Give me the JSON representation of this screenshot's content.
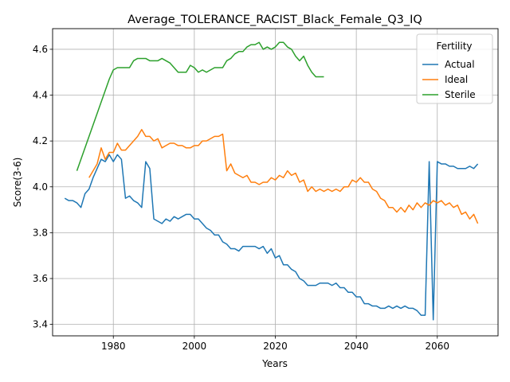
{
  "chart_data": {
    "type": "line",
    "title": "Average_TOLERANCE_RACIST_Black_Female_Q3_IQ",
    "xlabel": "Years",
    "ylabel": "Score(3-6)",
    "xlim": [
      1965,
      2075
    ],
    "ylim": [
      3.35,
      4.69
    ],
    "xticks": [
      1980,
      2000,
      2020,
      2040,
      2060
    ],
    "yticks": [
      3.4,
      3.6,
      3.8,
      4.0,
      4.2,
      4.4,
      4.6
    ],
    "ytick_labels": [
      "3.4",
      "3.6",
      "3.8",
      "4.0",
      "4.2",
      "4.4",
      "4.6"
    ],
    "grid": true,
    "legend": {
      "title": "Fertility",
      "placement": "top-right"
    },
    "series": [
      {
        "name": "Actual",
        "color": "#1f77b4",
        "x": [
          1968,
          1969,
          1970,
          1971,
          1972,
          1973,
          1974,
          1975,
          1976,
          1977,
          1978,
          1979,
          1980,
          1981,
          1982,
          1983,
          1984,
          1985,
          1986,
          1987,
          1988,
          1989,
          1990,
          1991,
          1992,
          1993,
          1994,
          1995,
          1996,
          1997,
          1998,
          1999,
          2000,
          2001,
          2002,
          2003,
          2004,
          2005,
          2006,
          2007,
          2008,
          2009,
          2010,
          2011,
          2012,
          2013,
          2014,
          2015,
          2016,
          2017,
          2018,
          2019,
          2020,
          2021,
          2022,
          2023,
          2024,
          2025,
          2026,
          2027,
          2028,
          2029,
          2030,
          2031,
          2032,
          2033,
          2034,
          2035,
          2036,
          2037,
          2038,
          2039,
          2040,
          2041,
          2042,
          2043,
          2044,
          2045,
          2046,
          2047,
          2048,
          2049,
          2050,
          2051,
          2052,
          2053,
          2054,
          2055,
          2056,
          2057,
          2058,
          2059,
          2060,
          2061,
          2062,
          2063,
          2064,
          2065,
          2066,
          2067,
          2068,
          2069,
          2070
        ],
        "y": [
          3.95,
          3.94,
          3.94,
          3.93,
          3.91,
          3.97,
          3.99,
          4.04,
          4.08,
          4.12,
          4.11,
          4.14,
          4.11,
          4.14,
          4.12,
          3.95,
          3.96,
          3.94,
          3.93,
          3.91,
          4.11,
          4.08,
          3.86,
          3.85,
          3.84,
          3.86,
          3.85,
          3.87,
          3.86,
          3.87,
          3.88,
          3.88,
          3.86,
          3.86,
          3.84,
          3.82,
          3.81,
          3.79,
          3.79,
          3.76,
          3.75,
          3.73,
          3.73,
          3.72,
          3.74,
          3.74,
          3.74,
          3.74,
          3.73,
          3.74,
          3.71,
          3.73,
          3.69,
          3.7,
          3.66,
          3.66,
          3.64,
          3.63,
          3.6,
          3.59,
          3.57,
          3.57,
          3.57,
          3.58,
          3.58,
          3.58,
          3.57,
          3.58,
          3.56,
          3.56,
          3.54,
          3.54,
          3.52,
          3.52,
          3.49,
          3.49,
          3.48,
          3.48,
          3.47,
          3.47,
          3.48,
          3.47,
          3.48,
          3.47,
          3.48,
          3.47,
          3.47,
          3.46,
          3.44,
          3.44,
          4.11,
          3.42,
          4.11,
          4.1,
          4.1,
          4.09,
          4.09,
          4.08,
          4.08,
          4.08,
          4.09,
          4.08,
          4.1
        ]
      },
      {
        "name": "Ideal",
        "color": "#ff7f0e",
        "x": [
          1974,
          1975,
          1976,
          1977,
          1978,
          1979,
          1980,
          1981,
          1982,
          1983,
          1984,
          1985,
          1986,
          1987,
          1988,
          1989,
          1990,
          1991,
          1992,
          1993,
          1994,
          1995,
          1996,
          1997,
          1998,
          1999,
          2000,
          2001,
          2002,
          2003,
          2004,
          2005,
          2006,
          2007,
          2008,
          2009,
          2010,
          2011,
          2012,
          2013,
          2014,
          2015,
          2016,
          2017,
          2018,
          2019,
          2020,
          2021,
          2022,
          2023,
          2024,
          2025,
          2026,
          2027,
          2028,
          2029,
          2030,
          2031,
          2032,
          2033,
          2034,
          2035,
          2036,
          2037,
          2038,
          2039,
          2040,
          2041,
          2042,
          2043,
          2044,
          2045,
          2046,
          2047,
          2048,
          2049,
          2050,
          2051,
          2052,
          2053,
          2054,
          2055,
          2056,
          2057,
          2058,
          2059,
          2060,
          2061,
          2062,
          2063,
          2064,
          2065,
          2066,
          2067,
          2068,
          2069,
          2070
        ],
        "y": [
          4.04,
          4.07,
          4.1,
          4.17,
          4.12,
          4.15,
          4.15,
          4.19,
          4.16,
          4.16,
          4.18,
          4.2,
          4.22,
          4.25,
          4.22,
          4.22,
          4.2,
          4.21,
          4.17,
          4.18,
          4.19,
          4.19,
          4.18,
          4.18,
          4.17,
          4.17,
          4.18,
          4.18,
          4.2,
          4.2,
          4.21,
          4.22,
          4.22,
          4.23,
          4.07,
          4.1,
          4.06,
          4.05,
          4.04,
          4.05,
          4.02,
          4.02,
          4.01,
          4.02,
          4.02,
          4.04,
          4.03,
          4.05,
          4.04,
          4.07,
          4.05,
          4.06,
          4.02,
          4.03,
          3.98,
          4.0,
          3.98,
          3.99,
          3.98,
          3.99,
          3.98,
          3.99,
          3.98,
          4.0,
          4.0,
          4.03,
          4.02,
          4.04,
          4.02,
          4.02,
          3.99,
          3.98,
          3.95,
          3.94,
          3.91,
          3.91,
          3.89,
          3.91,
          3.89,
          3.92,
          3.9,
          3.93,
          3.91,
          3.93,
          3.92,
          3.94,
          3.93,
          3.94,
          3.92,
          3.93,
          3.91,
          3.92,
          3.88,
          3.89,
          3.86,
          3.88,
          3.84
        ]
      },
      {
        "name": "Sterile",
        "color": "#2ca02c",
        "x": [
          1971,
          1979,
          1980,
          1981,
          1982,
          1983,
          1984,
          1985,
          1986,
          1987,
          1988,
          1989,
          1990,
          1991,
          1992,
          1993,
          1994,
          1995,
          1996,
          1997,
          1998,
          1999,
          2000,
          2001,
          2002,
          2003,
          2004,
          2005,
          2006,
          2007,
          2008,
          2009,
          2010,
          2011,
          2012,
          2013,
          2014,
          2015,
          2016,
          2017,
          2018,
          2019,
          2020,
          2021,
          2022,
          2023,
          2024,
          2025,
          2026,
          2027,
          2028,
          2029,
          2030,
          2031,
          2032
        ],
        "y": [
          4.07,
          4.47,
          4.51,
          4.52,
          4.52,
          4.52,
          4.52,
          4.55,
          4.56,
          4.56,
          4.56,
          4.55,
          4.55,
          4.55,
          4.56,
          4.55,
          4.54,
          4.52,
          4.5,
          4.5,
          4.5,
          4.53,
          4.52,
          4.5,
          4.51,
          4.5,
          4.51,
          4.52,
          4.52,
          4.52,
          4.55,
          4.56,
          4.58,
          4.59,
          4.59,
          4.61,
          4.62,
          4.62,
          4.63,
          4.6,
          4.61,
          4.6,
          4.61,
          4.63,
          4.63,
          4.61,
          4.6,
          4.57,
          4.55,
          4.57,
          4.53,
          4.5,
          4.48,
          4.48,
          4.48
        ]
      }
    ]
  }
}
